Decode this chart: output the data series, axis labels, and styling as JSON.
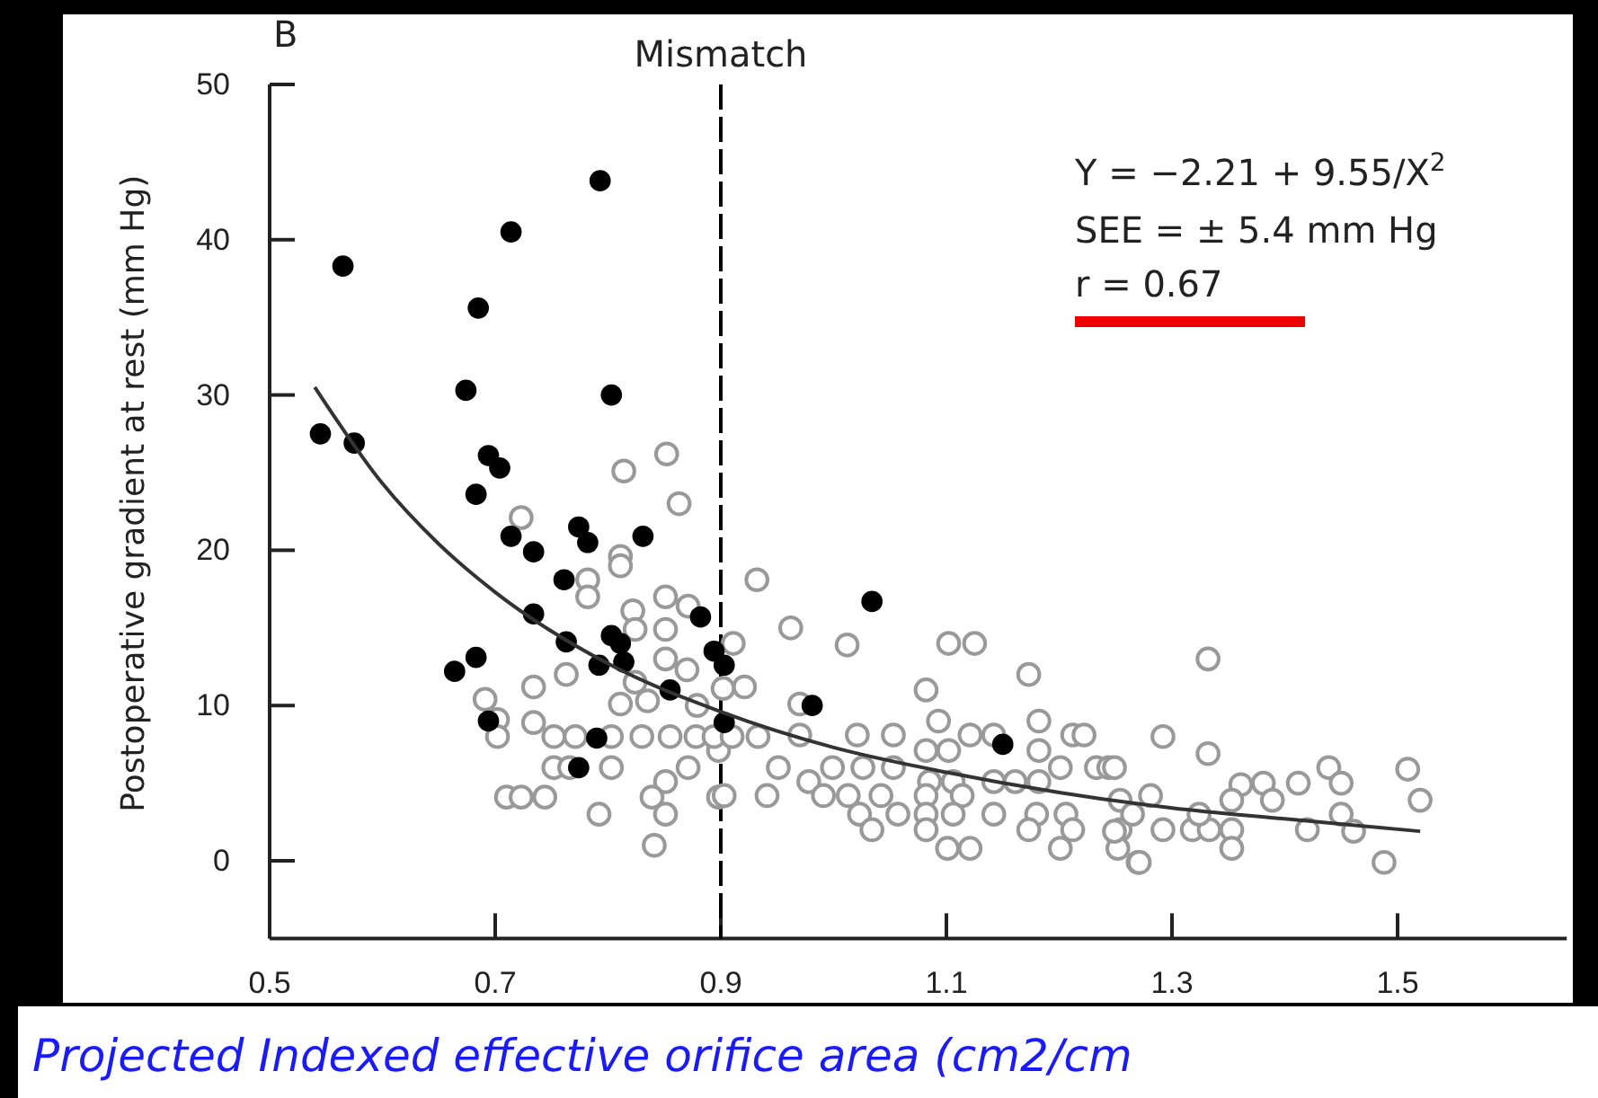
{
  "chart_data": {
    "type": "scatter",
    "xlabel": "Projected Indexed effective orifice area (cm2/cm",
    "ylabel": "Postoperative gradient at rest (mm Hg)",
    "xlim": [
      0.5,
      1.65
    ],
    "ylim": [
      -5,
      50
    ],
    "xticks": [
      0.5,
      0.7,
      0.9,
      1.1,
      1.3,
      1.5
    ],
    "yticks": [
      0,
      10,
      20,
      30,
      40,
      50
    ],
    "grid": false,
    "marker": "circle",
    "annotations": [
      "B",
      "Y = −2.21 + 9.55/X$^{2}$",
      "SEE = ± 5.4 mm Hg",
      "r = 0.67"
    ],
    "ref_lines": [
      {
        "axis": "x",
        "value": 0.9,
        "label": "Mismatch",
        "line_style": "dashed",
        "color": "#000000"
      }
    ],
    "series": [
      {
        "color": "#999999",
        "x": [
          0.814,
          0.852,
          0.863,
          0.723,
          0.811,
          0.811,
          0.782,
          0.782,
          0.851,
          0.871,
          0.822,
          0.851,
          0.824,
          0.763,
          0.734,
          0.851,
          0.87,
          0.824,
          0.811,
          0.835,
          0.691,
          0.702,
          0.734,
          0.702,
          0.752,
          0.771,
          0.803,
          0.83,
          0.855,
          0.878,
          0.879,
          0.752,
          0.766,
          0.803,
          0.871,
          0.851,
          0.839,
          0.71,
          0.723,
          0.744,
          0.898,
          0.851,
          0.792,
          0.841,
          0.898,
          0.932,
          0.962,
          1.012,
          1.102,
          1.125,
          1.173,
          1.082,
          1.093,
          1.182,
          0.97,
          0.911,
          0.921,
          0.902,
          0.894,
          0.91,
          0.933,
          0.97,
          1.021,
          1.053,
          1.082,
          1.102,
          1.121,
          1.142,
          1.212,
          1.222,
          1.182,
          1.201,
          1.233,
          1.244,
          0.951,
          0.978,
          0.999,
          1.026,
          1.053,
          1.085,
          1.106,
          1.142,
          1.161,
          1.182,
          0.903,
          0.941,
          0.991,
          1.013,
          1.042,
          1.082,
          1.114,
          1.023,
          1.057,
          1.082,
          1.106,
          1.142,
          1.18,
          1.206,
          1.254,
          1.034,
          1.082,
          1.173,
          1.212,
          1.254,
          1.101,
          1.121,
          1.201,
          1.27,
          1.252,
          1.332,
          1.292,
          1.332,
          1.249,
          1.361,
          1.381,
          1.412,
          1.439,
          1.45,
          1.509,
          1.52,
          1.389,
          1.353,
          1.281,
          1.265,
          1.292,
          1.318,
          1.333,
          1.353,
          1.353,
          1.42,
          1.45,
          1.461,
          1.488,
          1.271,
          1.249,
          1.324
        ],
        "values": [
          25.1,
          26.2,
          23.0,
          22.1,
          19.6,
          19.0,
          18.1,
          17.0,
          17.0,
          16.4,
          16.1,
          14.9,
          14.9,
          12.0,
          11.2,
          13.0,
          12.3,
          11.5,
          10.1,
          10.3,
          10.4,
          9.1,
          8.9,
          8.0,
          8.0,
          8.0,
          8.0,
          8.0,
          8.0,
          8.0,
          10.0,
          6.0,
          6.0,
          6.0,
          6.0,
          5.1,
          4.1,
          4.1,
          4.1,
          4.1,
          4.1,
          3.0,
          3.0,
          1.0,
          7.1,
          18.1,
          15.0,
          13.9,
          14.0,
          14.0,
          12.0,
          11.0,
          9.0,
          9.0,
          10.1,
          14.0,
          11.2,
          11.1,
          8.0,
          8.0,
          8.0,
          8.1,
          8.1,
          8.1,
          7.1,
          7.1,
          8.1,
          8.1,
          8.1,
          8.1,
          7.1,
          6.0,
          6.0,
          6.0,
          6.0,
          5.1,
          6.0,
          6.0,
          6.0,
          5.1,
          5.1,
          5.1,
          5.1,
          5.1,
          4.2,
          4.2,
          4.2,
          4.2,
          4.2,
          4.2,
          4.2,
          3.0,
          3.0,
          3.0,
          3.0,
          3.0,
          3.0,
          3.0,
          3.9,
          2.0,
          2.0,
          2.0,
          2.0,
          2.0,
          0.8,
          0.8,
          0.8,
          -0.1,
          0.8,
          13.0,
          8.0,
          6.9,
          6.0,
          4.9,
          5.0,
          5.0,
          6.0,
          5.0,
          5.9,
          3.9,
          3.9,
          3.9,
          4.2,
          3.0,
          2.0,
          2.0,
          2.0,
          2.0,
          0.8,
          2.0,
          3.0,
          1.9,
          -0.1,
          -0.1,
          1.9,
          3.0
        ]
      },
      {
        "color": "#000000",
        "x": [
          0.793,
          0.714,
          0.565,
          0.685,
          0.674,
          0.803,
          0.545,
          0.575,
          0.694,
          0.704,
          0.683,
          0.714,
          0.774,
          0.782,
          0.831,
          0.734,
          0.761,
          0.734,
          0.763,
          0.803,
          0.811,
          0.792,
          0.814,
          0.882,
          0.894,
          0.903,
          0.664,
          0.683,
          0.694,
          0.79,
          0.774,
          0.855,
          1.034,
          0.981,
          1.15,
          0.903
        ],
        "values": [
          43.8,
          40.5,
          38.3,
          35.6,
          30.3,
          30.0,
          27.5,
          26.9,
          26.1,
          25.3,
          23.6,
          20.9,
          21.5,
          20.5,
          20.9,
          19.9,
          18.1,
          15.9,
          14.1,
          14.5,
          14.0,
          12.6,
          12.8,
          15.7,
          13.5,
          12.6,
          12.2,
          13.1,
          9.0,
          7.9,
          6.0,
          11.0,
          16.7,
          10.0,
          7.5,
          8.9
        ]
      },
      {
        "type": "line",
        "color": "#333333",
        "marker": "none",
        "x": [
          0.54,
          0.6,
          0.65,
          0.7,
          0.8,
          0.9,
          1.0,
          1.1,
          1.2,
          1.3,
          1.4,
          1.52
        ],
        "values": [
          30.5,
          24.3,
          20.4,
          17.3,
          12.7,
          9.6,
          7.3,
          5.7,
          4.4,
          3.4,
          2.7,
          1.9
        ]
      }
    ]
  }
}
